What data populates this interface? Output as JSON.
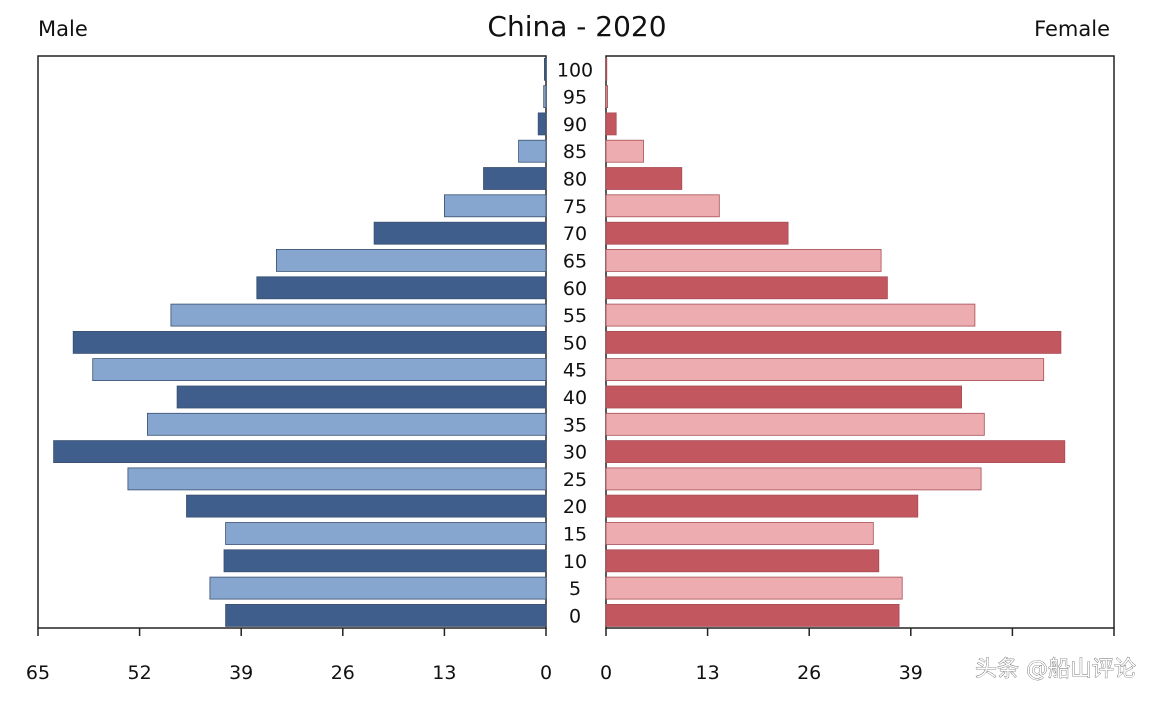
{
  "chart_data": {
    "type": "bar",
    "title": "China - 2020",
    "left_label": "Male",
    "right_label": "Female",
    "xlim": [
      0,
      65
    ],
    "ticks": [
      0,
      13,
      26,
      39,
      52,
      65
    ],
    "tick_labels_left": [
      "65",
      "52",
      "39",
      "26",
      "13",
      "0"
    ],
    "tick_labels_right": [
      "0",
      "13",
      "26",
      "39"
    ],
    "categories": [
      "0",
      "5",
      "10",
      "15",
      "20",
      "25",
      "30",
      "35",
      "40",
      "45",
      "50",
      "55",
      "60",
      "65",
      "70",
      "75",
      "80",
      "85",
      "90",
      "95",
      "100"
    ],
    "series": [
      {
        "name": "Male",
        "values": [
          41.0,
          43.0,
          41.2,
          41.0,
          46.0,
          53.5,
          63.0,
          51.0,
          47.2,
          58.0,
          60.5,
          48.0,
          37.0,
          34.5,
          22.0,
          13.0,
          8.0,
          3.5,
          1.0,
          0.3,
          0.2
        ]
      },
      {
        "name": "Female",
        "values": [
          37.5,
          37.9,
          34.9,
          34.2,
          39.9,
          48.0,
          58.7,
          48.4,
          45.5,
          56.0,
          58.2,
          47.2,
          36.0,
          35.2,
          23.3,
          14.5,
          9.7,
          4.8,
          1.3,
          0.2,
          0.1
        ]
      }
    ],
    "colors": {
      "male_dark": "#3f5e8c",
      "male_light": "#86a6cf",
      "female_dark": "#c2575f",
      "female_light": "#edadb0"
    }
  },
  "watermark": "头条 @船山评论"
}
